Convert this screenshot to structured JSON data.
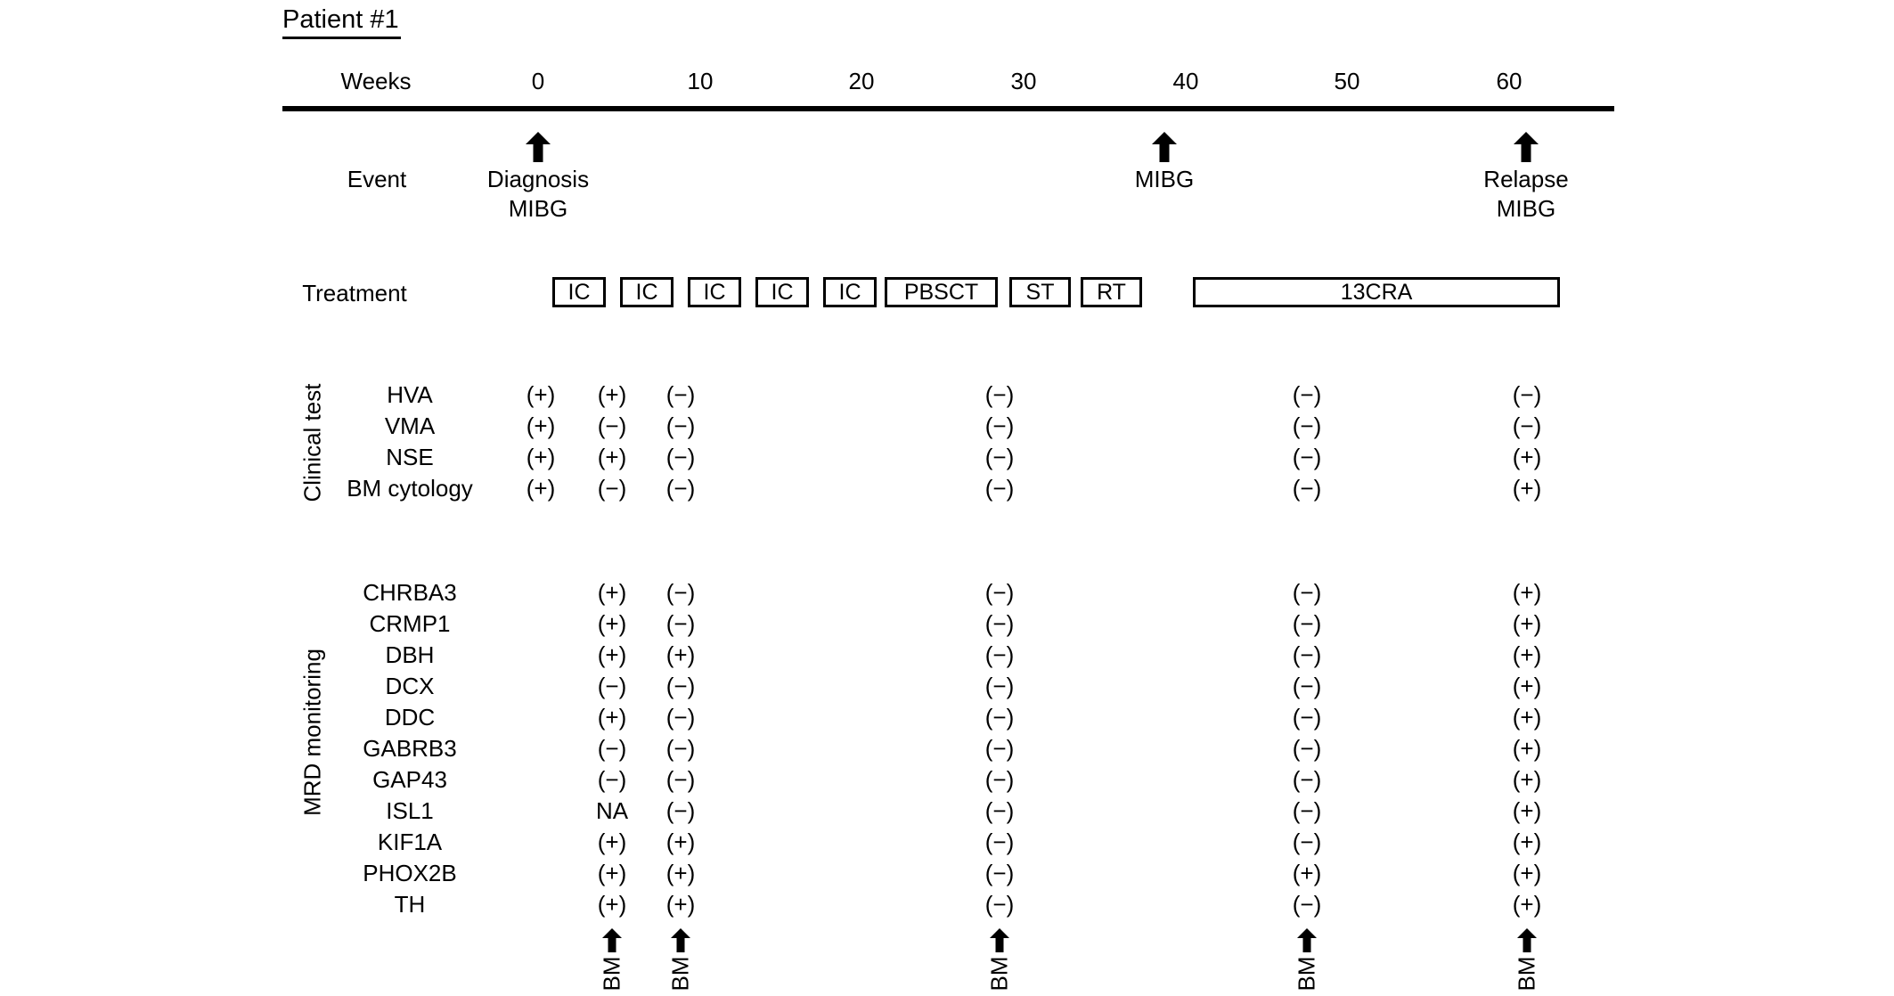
{
  "figure": {
    "title": "Patient #1",
    "axis": {
      "label": "Weeks",
      "ticks": [
        "0",
        "10",
        "20",
        "30",
        "40",
        "50",
        "60"
      ]
    },
    "event_row_label": "Event",
    "events": [
      {
        "name": "diagnosis",
        "lines": [
          "Diagnosis",
          "MIBG"
        ]
      },
      {
        "name": "mibg-week40",
        "lines": [
          "MIBG"
        ]
      },
      {
        "name": "relapse",
        "lines": [
          "Relapse",
          "MIBG"
        ]
      }
    ],
    "treatment_row_label": "Treatment",
    "treatments": [
      "IC",
      "IC",
      "IC",
      "IC",
      "IC",
      "PBSCT",
      "ST",
      "RT",
      "13CRA"
    ],
    "sections": [
      {
        "label": "Clinical test",
        "rows": [
          {
            "name": "HVA",
            "values": [
              "(+)",
              "(+)",
              "(−)",
              "(−)",
              "(−)",
              "(−)"
            ]
          },
          {
            "name": "VMA",
            "values": [
              "(+)",
              "(−)",
              "(−)",
              "(−)",
              "(−)",
              "(−)"
            ]
          },
          {
            "name": "NSE",
            "values": [
              "(+)",
              "(+)",
              "(−)",
              "(−)",
              "(−)",
              "(+)"
            ]
          },
          {
            "name": "BM cytology",
            "values": [
              "(+)",
              "(−)",
              "(−)",
              "(−)",
              "(−)",
              "(+)"
            ]
          }
        ]
      },
      {
        "label": "MRD monitoring",
        "rows": [
          {
            "name": "CHRBA3",
            "values": [
              null,
              "(+)",
              "(−)",
              "(−)",
              "(−)",
              "(+)"
            ]
          },
          {
            "name": "CRMP1",
            "values": [
              null,
              "(+)",
              "(−)",
              "(−)",
              "(−)",
              "(+)"
            ]
          },
          {
            "name": "DBH",
            "values": [
              null,
              "(+)",
              "(+)",
              "(−)",
              "(−)",
              "(+)"
            ]
          },
          {
            "name": "DCX",
            "values": [
              null,
              "(−)",
              "(−)",
              "(−)",
              "(−)",
              "(+)"
            ]
          },
          {
            "name": "DDC",
            "values": [
              null,
              "(+)",
              "(−)",
              "(−)",
              "(−)",
              "(+)"
            ]
          },
          {
            "name": "GABRB3",
            "values": [
              null,
              "(−)",
              "(−)",
              "(−)",
              "(−)",
              "(+)"
            ]
          },
          {
            "name": "GAP43",
            "values": [
              null,
              "(−)",
              "(−)",
              "(−)",
              "(−)",
              "(+)"
            ]
          },
          {
            "name": "ISL1",
            "values": [
              null,
              "NA",
              "(−)",
              "(−)",
              "(−)",
              "(+)"
            ]
          },
          {
            "name": "KIF1A",
            "values": [
              null,
              "(+)",
              "(+)",
              "(−)",
              "(−)",
              "(+)"
            ]
          },
          {
            "name": "PHOX2B",
            "values": [
              null,
              "(+)",
              "(+)",
              "(−)",
              "(+)",
              "(+)"
            ]
          },
          {
            "name": "TH",
            "values": [
              null,
              "(+)",
              "(+)",
              "(−)",
              "(−)",
              "(+)"
            ]
          }
        ]
      }
    ],
    "bm_sample_label": "BM",
    "colors": {
      "ink": "#000000",
      "background": "#ffffff"
    }
  }
}
